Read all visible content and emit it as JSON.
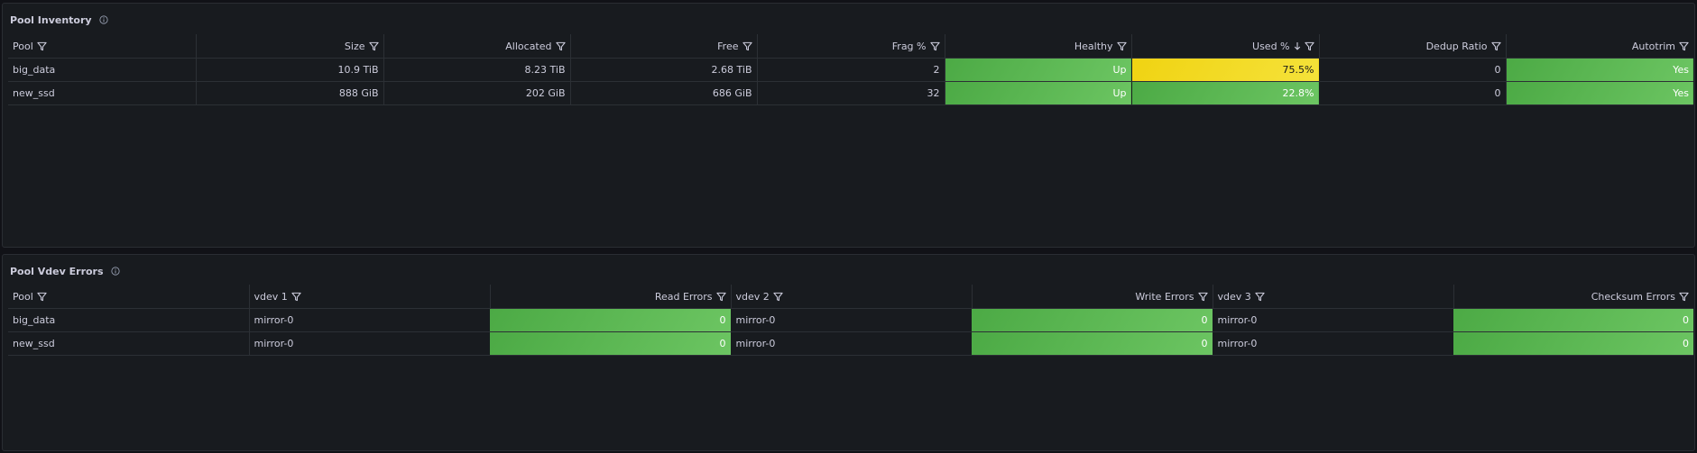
{
  "pool_inventory": {
    "title": "Pool Inventory",
    "columns": [
      "Pool",
      "Size",
      "Allocated",
      "Free",
      "Frag %",
      "Healthy",
      "Used %",
      "Dedup Ratio",
      "Autotrim"
    ],
    "rows": [
      [
        "big_data",
        "10.9 TiB",
        "8.23 TiB",
        "2.68 TiB",
        "2",
        "Up",
        "75.5%",
        "0",
        "Yes"
      ],
      [
        "new_ssd",
        "888 GiB",
        "202 GiB",
        "686 GiB",
        "32",
        "Up",
        "22.8%",
        "0",
        "Yes"
      ]
    ],
    "sorted_column": "Used %",
    "sort_direction": "descending",
    "colors": {
      "ok": "#56b74e",
      "warn": "#f2d91c"
    }
  },
  "pool_vdev_errors": {
    "title": "Pool Vdev Errors",
    "columns": [
      "Pool",
      "vdev 1",
      "Read Errors",
      "vdev 2",
      "Write Errors",
      "vdev 3",
      "Checksum Errors"
    ],
    "rows": [
      [
        "big_data",
        "mirror-0",
        "0",
        "mirror-0",
        "0",
        "mirror-0",
        "0"
      ],
      [
        "new_ssd",
        "mirror-0",
        "0",
        "mirror-0",
        "0",
        "mirror-0",
        "0"
      ]
    ]
  },
  "icons": {
    "info": "info-icon",
    "filter": "filter-icon",
    "sort": "sort-down-icon"
  }
}
